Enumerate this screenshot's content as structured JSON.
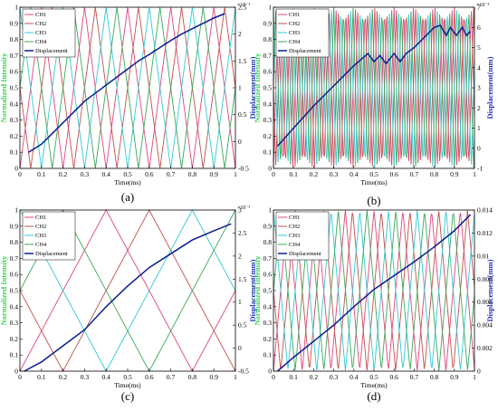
{
  "colors": {
    "CH1": "#e0457a",
    "CH2": "#c0504d",
    "CH3": "#2fc9d6",
    "CH4": "#3aa85a",
    "Displacement": "#0b1d8f",
    "left_axis_label": "#39d353",
    "right_axis_label": "#1e2dbd"
  },
  "chart_data": [
    {
      "panel_label": "(a)",
      "type": "line",
      "xlabel": "Time(ms)",
      "ylabel_left": "Normalized Intensity",
      "ylabel_right": "Displacement(mm)",
      "right_axis_multiplier": "×10⁻³",
      "xlim": [
        0,
        1
      ],
      "ylim_left": [
        0,
        1
      ],
      "ylim_right": [
        -0.5,
        2.5
      ],
      "xticks": [
        "0",
        "0.1",
        "0.2",
        "0.3",
        "0.4",
        "0.5",
        "0.6",
        "0.7",
        "0.8",
        "0.9",
        "1"
      ],
      "yticks_left": [
        "0",
        "0.1",
        "0.2",
        "0.3",
        "0.4",
        "0.5",
        "0.6",
        "0.7",
        "0.8",
        "0.9",
        "1"
      ],
      "yticks_right": [
        "-0.5",
        "0",
        "0.5",
        "1",
        "1.5",
        "2",
        "2.5"
      ],
      "legend": [
        "CH1",
        "CH2",
        "CH3",
        "CH4",
        "Displacement"
      ],
      "legend_position": "top-left",
      "intensity": {
        "kind": "triangle",
        "period": 0.2,
        "phases": [
          0.0,
          0.05,
          0.1,
          0.15
        ]
      },
      "displacement": {
        "x": [
          0.04,
          0.1,
          0.15,
          0.2,
          0.25,
          0.3,
          0.35,
          0.4,
          0.45,
          0.5,
          0.55,
          0.6,
          0.65,
          0.7,
          0.75,
          0.8,
          0.85,
          0.9,
          0.95
        ],
        "y": [
          -0.2,
          -0.05,
          0.15,
          0.35,
          0.55,
          0.75,
          0.9,
          1.05,
          1.2,
          1.35,
          1.5,
          1.62,
          1.75,
          1.88,
          2.0,
          2.1,
          2.2,
          2.3,
          2.38
        ]
      }
    },
    {
      "panel_label": "(b)",
      "type": "line",
      "xlabel": "Time(ms)",
      "ylabel_left": "Normalized Intensity",
      "ylabel_right": "Displacement(mm)",
      "right_axis_multiplier": "×10⁻³",
      "xlim": [
        0,
        1
      ],
      "ylim_left": [
        0,
        1
      ],
      "ylim_right": [
        -1,
        7
      ],
      "xticks": [
        "0",
        "0.1",
        "0.2",
        "0.3",
        "0.4",
        "0.5",
        "0.6",
        "0.7",
        "0.8",
        "0.9",
        "1"
      ],
      "yticks_left": [
        "0",
        "0.1",
        "0.2",
        "0.3",
        "0.4",
        "0.5",
        "0.6",
        "0.7",
        "0.8",
        "0.9",
        "1"
      ],
      "yticks_right": [
        "-1",
        "0",
        "1",
        "2",
        "3",
        "4",
        "5",
        "6",
        "7"
      ],
      "legend": [
        "CH1",
        "CH2",
        "CH3",
        "CH4",
        "Displacement"
      ],
      "legend_position": "top-left",
      "intensity": {
        "kind": "triangle",
        "period": 0.048,
        "phases": [
          0.0,
          0.012,
          0.024,
          0.036
        ]
      },
      "displacement": {
        "x": [
          0.02,
          0.1,
          0.2,
          0.3,
          0.4,
          0.47,
          0.5,
          0.53,
          0.56,
          0.6,
          0.63,
          0.66,
          0.7,
          0.75,
          0.8,
          0.83,
          0.86,
          0.88,
          0.91,
          0.94,
          0.96,
          0.98
        ],
        "y": [
          0.1,
          1.0,
          2.1,
          3.1,
          4.1,
          4.7,
          4.3,
          4.6,
          4.2,
          4.7,
          4.3,
          4.7,
          5.0,
          5.5,
          6.0,
          6.1,
          5.6,
          6.0,
          5.6,
          6.0,
          5.6,
          5.8
        ]
      }
    },
    {
      "panel_label": "(c)",
      "type": "line",
      "xlabel": "Time(ms)",
      "ylabel_left": "Normalized Intensity",
      "ylabel_right": "Displacement(mm)",
      "right_axis_multiplier": "×10⁻³",
      "xlim": [
        0,
        1
      ],
      "ylim_left": [
        0,
        1
      ],
      "ylim_right": [
        -0.5,
        3
      ],
      "xticks": [
        "0",
        "0.1",
        "0.2",
        "0.3",
        "0.4",
        "0.5",
        "0.6",
        "0.7",
        "0.8",
        "0.9",
        "1"
      ],
      "yticks_left": [
        "0",
        "0.1",
        "0.2",
        "0.3",
        "0.4",
        "0.5",
        "0.6",
        "0.7",
        "0.8",
        "0.9",
        "1"
      ],
      "yticks_right": [
        "-0.5",
        "0",
        "0.5",
        "1",
        "1.5",
        "2",
        "2.5",
        "3"
      ],
      "legend": [
        "CH1",
        "CH2",
        "CH3",
        "CH4",
        "Displacement"
      ],
      "legend_position": "top-left",
      "intensity": {
        "kind": "triangle",
        "period": 0.8,
        "phases": [
          0.0,
          0.2,
          0.4,
          0.6
        ]
      },
      "displacement": {
        "x": [
          0.02,
          0.1,
          0.2,
          0.3,
          0.4,
          0.5,
          0.6,
          0.7,
          0.8,
          0.9,
          0.98
        ],
        "y": [
          -0.5,
          -0.3,
          0.05,
          0.4,
          0.9,
          1.35,
          1.75,
          2.05,
          2.35,
          2.55,
          2.7
        ]
      }
    },
    {
      "panel_label": "(d)",
      "type": "line",
      "xlabel": "Time(ms)",
      "ylabel_left": "Normalized Intensity",
      "ylabel_right": "Displacement(mm)",
      "right_axis_multiplier": "",
      "xlim": [
        0,
        1
      ],
      "ylim_left": [
        0,
        1
      ],
      "ylim_right": [
        0,
        0.014
      ],
      "xticks": [
        "0",
        "0.1",
        "0.2",
        "0.3",
        "0.4",
        "0.5",
        "0.6",
        "0.7",
        "0.8",
        "0.9",
        "1"
      ],
      "yticks_left": [
        "0",
        "0.1",
        "0.2",
        "0.3",
        "0.4",
        "0.5",
        "0.6",
        "0.7",
        "0.8",
        "0.9",
        "1"
      ],
      "yticks_right": [
        "0",
        "0.002",
        "0.004",
        "0.006",
        "0.008",
        "0.01",
        "0.012",
        "0.014"
      ],
      "legend": [
        "CH1",
        "CH2",
        "CH3",
        "CH4",
        "Displacement"
      ],
      "legend_position": "top-left",
      "intensity": {
        "kind": "triangle",
        "period": 0.143,
        "phases": [
          0.0,
          0.036,
          0.072,
          0.108
        ]
      },
      "displacement": {
        "x": [
          0.02,
          0.1,
          0.2,
          0.3,
          0.4,
          0.5,
          0.6,
          0.7,
          0.8,
          0.9,
          0.98
        ],
        "y": [
          0.0,
          0.0012,
          0.0026,
          0.004,
          0.0056,
          0.0071,
          0.0083,
          0.0095,
          0.0108,
          0.0122,
          0.0136
        ]
      }
    }
  ]
}
